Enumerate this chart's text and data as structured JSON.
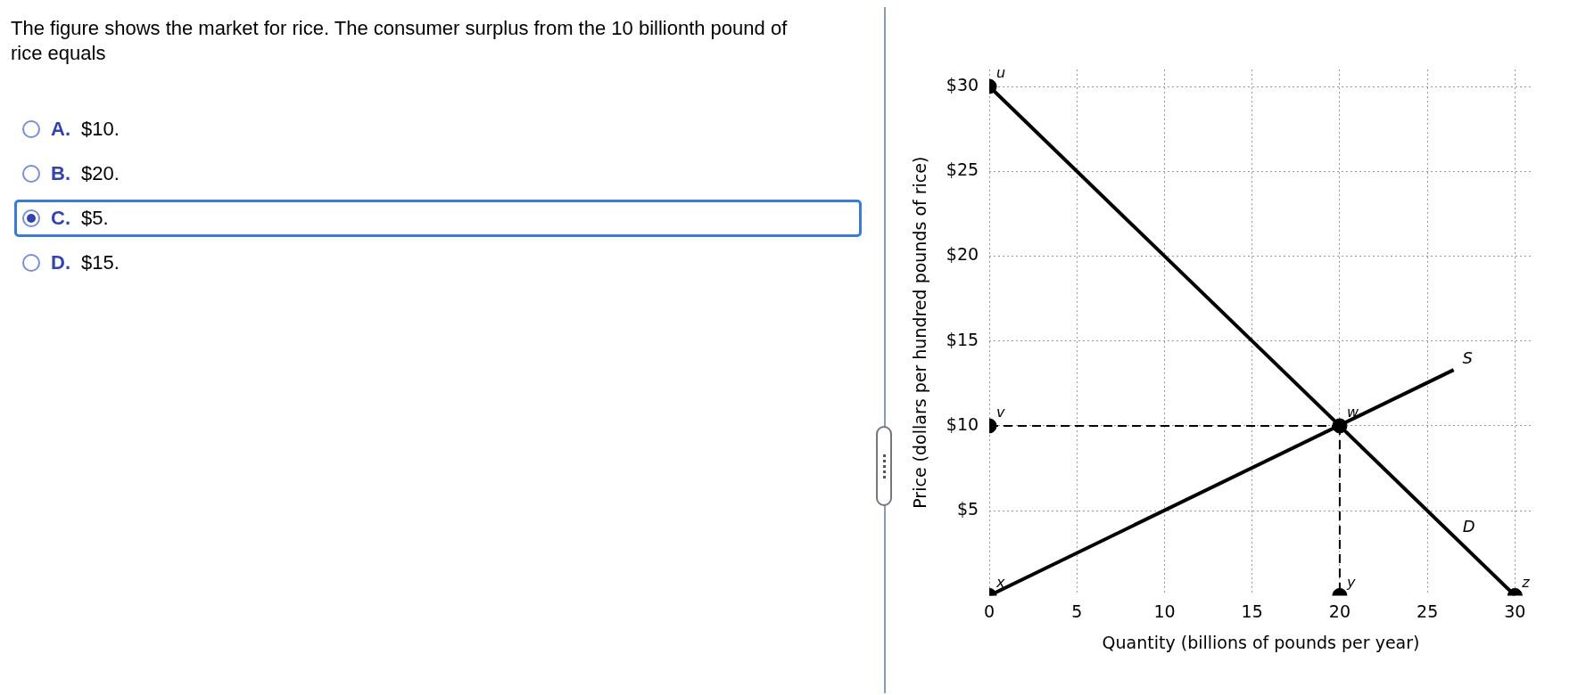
{
  "chart_data": {
    "type": "line",
    "title": "The figure shows the market for rice. The consumer surplus from the 10 billionth pound of rice equals",
    "xlabel": "Quantity (billions of pounds per year)",
    "ylabel": "Price (dollars per hundred pounds of rice)",
    "xlim": [
      0,
      31
    ],
    "ylim": [
      0,
      31
    ],
    "xticks": [
      0,
      5,
      10,
      15,
      20,
      25,
      30
    ],
    "yticks": [
      {
        "value": 5,
        "label": "$5"
      },
      {
        "value": 10,
        "label": "$10"
      },
      {
        "value": 15,
        "label": "$15"
      },
      {
        "value": 20,
        "label": "$20"
      },
      {
        "value": 25,
        "label": "$25"
      },
      {
        "value": 30,
        "label": "$30"
      }
    ],
    "grid": true,
    "series": [
      {
        "name": "D",
        "type": "line",
        "x": [
          0,
          30
        ],
        "values": [
          30,
          0
        ],
        "color": "#000000"
      },
      {
        "name": "S",
        "type": "line",
        "x": [
          0,
          26.5
        ],
        "values": [
          0,
          13.3
        ],
        "color": "#000000"
      },
      {
        "type": "line",
        "x": [
          0,
          20
        ],
        "values": [
          10,
          10
        ],
        "line_style": "dashed",
        "color": "#000000"
      },
      {
        "type": "line",
        "x": [
          20,
          20
        ],
        "values": [
          10,
          0
        ],
        "line_style": "dashed",
        "color": "#000000"
      },
      {
        "type": "scatter",
        "x": [
          0,
          0,
          20,
          0,
          20,
          30
        ],
        "values": [
          30,
          10,
          10,
          0,
          0,
          0
        ],
        "marker": "circle",
        "color": "#000000"
      }
    ],
    "annotations": [
      "A. $10.",
      "B. $20.",
      "C. $5.",
      "D. $15.",
      {
        "text": "u",
        "x": 0,
        "y": 30
      },
      {
        "text": "v",
        "x": 0,
        "y": 10
      },
      {
        "text": "w",
        "x": 20,
        "y": 10
      },
      {
        "text": "x",
        "x": 0,
        "y": 0
      },
      {
        "text": "y",
        "x": 20,
        "y": 0
      },
      {
        "text": "z",
        "x": 30,
        "y": 0
      }
    ]
  }
}
